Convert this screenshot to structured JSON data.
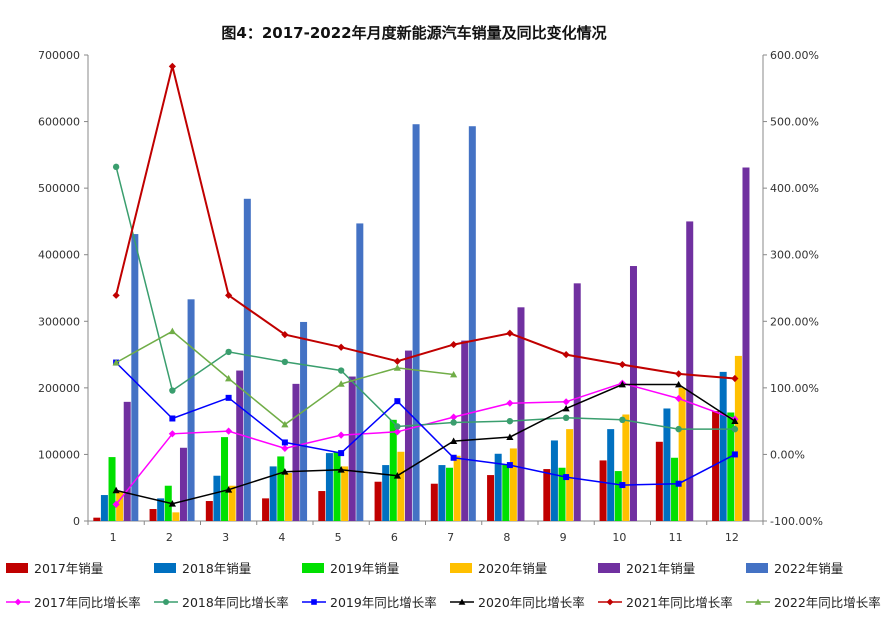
{
  "chart_data": {
    "type": "bar",
    "title": "图4：2017-2022年月度新能源汽车销量及同比变化情况",
    "categories": [
      "1",
      "2",
      "3",
      "4",
      "5",
      "6",
      "7",
      "8",
      "9",
      "10",
      "11",
      "12"
    ],
    "y_left": {
      "min": 0,
      "max": 700000,
      "step": 100000,
      "tick_labels": [
        "0",
        "100000",
        "200000",
        "300000",
        "400000",
        "500000",
        "600000",
        "700000"
      ]
    },
    "y_right": {
      "min": -100,
      "max": 600,
      "step": 100,
      "tick_labels": [
        "-100.00%",
        "0.00%",
        "100.00%",
        "200.00%",
        "300.00%",
        "400.00%",
        "500.00%",
        "600.00%"
      ]
    },
    "bar_series": [
      {
        "name": "2017年销量",
        "color": "#c00000",
        "values": [
          5000,
          18000,
          30000,
          34000,
          45000,
          59000,
          56000,
          69000,
          78000,
          91000,
          119000,
          165000
        ]
      },
      {
        "name": "2018年销量",
        "color": "#0070c0",
        "values": [
          39000,
          34000,
          68000,
          82000,
          102000,
          84000,
          84000,
          101000,
          121000,
          138000,
          169000,
          224000
        ]
      },
      {
        "name": "2019年销量",
        "color": "#00e000",
        "values": [
          96000,
          53000,
          126000,
          97000,
          104000,
          152000,
          80000,
          85000,
          80000,
          75000,
          95000,
          163000
        ]
      },
      {
        "name": "2020年销量",
        "color": "#ffc000",
        "values": [
          44000,
          13000,
          53000,
          72000,
          82000,
          104000,
          98000,
          109000,
          138000,
          160000,
          200000,
          248000
        ]
      },
      {
        "name": "2021年销量",
        "color": "#7030a0",
        "values": [
          179000,
          110000,
          226000,
          206000,
          217000,
          256000,
          271000,
          321000,
          357000,
          383000,
          450000,
          531000
        ]
      },
      {
        "name": "2022年销量",
        "color": "#4472c4",
        "values": [
          431000,
          333000,
          484000,
          299000,
          447000,
          596000,
          593000,
          null,
          null,
          null,
          null,
          null
        ]
      }
    ],
    "line_series": [
      {
        "name": "2017年同比增长率",
        "color": "#ff00ff",
        "marker": "diamond",
        "values": [
          -75,
          31,
          35,
          9,
          29,
          34,
          56,
          77,
          79,
          107,
          84,
          53
        ]
      },
      {
        "name": "2018年同比增长率",
        "color": "#3a9e6e",
        "marker": "circle",
        "values": [
          432,
          96,
          154,
          139,
          126,
          42,
          48,
          50,
          55,
          52,
          38,
          38
        ]
      },
      {
        "name": "2019年同比增长率",
        "color": "#0000ff",
        "marker": "square",
        "values": [
          138,
          54,
          85,
          18,
          2,
          80,
          -5,
          -16,
          -34,
          -46,
          -44,
          0
        ]
      },
      {
        "name": "2020年同比增长率",
        "color": "#000000",
        "marker": "triangle",
        "values": [
          -54,
          -74,
          -53,
          -26,
          -23,
          -32,
          20,
          26,
          69,
          105,
          105,
          50
        ]
      },
      {
        "name": "2021年同比增长率",
        "color": "#c00000",
        "marker": "diamond",
        "values": [
          239,
          583,
          239,
          180,
          161,
          140,
          165,
          182,
          150,
          135,
          121,
          114
        ]
      },
      {
        "name": "2022年同比增长率",
        "color": "#70ad47",
        "marker": "triangle",
        "values": [
          138,
          185,
          114,
          45,
          106,
          130,
          120,
          null,
          null,
          null,
          null,
          null
        ]
      }
    ],
    "legend_position": "bottom",
    "grid": false
  }
}
